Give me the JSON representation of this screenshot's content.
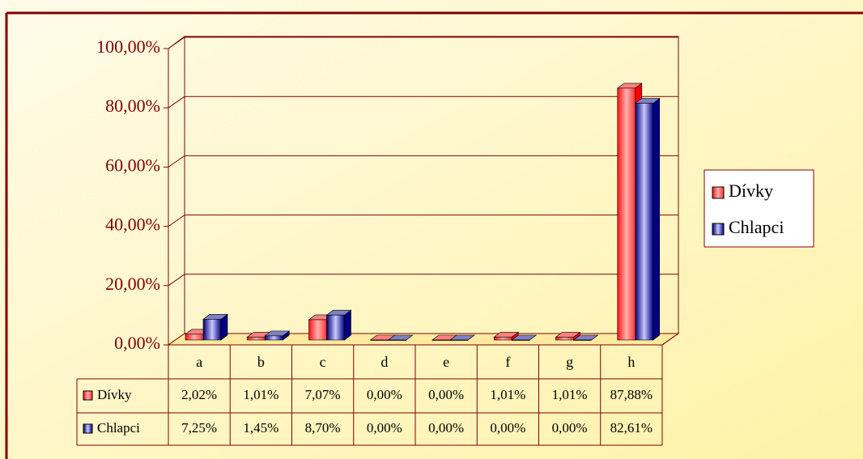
{
  "chart_data": {
    "type": "bar",
    "categories": [
      "a",
      "b",
      "c",
      "d",
      "e",
      "f",
      "g",
      "h"
    ],
    "series": [
      {
        "name": "Dívky",
        "color": "#ff0000",
        "values": [
          2.02,
          1.01,
          7.07,
          0,
          0,
          1.01,
          1.01,
          87.88
        ],
        "value_labels": [
          "2,02%",
          "1,01%",
          "7,07%",
          "0,00%",
          "0,00%",
          "1,01%",
          "1,01%",
          "87,88%"
        ]
      },
      {
        "name": "Chlapci",
        "color": "#000080",
        "values": [
          7.25,
          1.45,
          8.7,
          0,
          0,
          0,
          0,
          82.61
        ],
        "value_labels": [
          "7,25%",
          "1,45%",
          "8,70%",
          "0,00%",
          "0,00%",
          "0,00%",
          "0,00%",
          "82,61%"
        ]
      }
    ],
    "ylim": [
      0,
      100
    ],
    "yticks": [
      {
        "value": 0,
        "label": "0,00%"
      },
      {
        "value": 20,
        "label": "20,00%"
      },
      {
        "value": 40,
        "label": "40,00%"
      },
      {
        "value": 60,
        "label": "60,00%"
      },
      {
        "value": 80,
        "label": "80,00%"
      },
      {
        "value": 100,
        "label": "100,00%"
      }
    ],
    "grid": true,
    "legend": "right"
  }
}
